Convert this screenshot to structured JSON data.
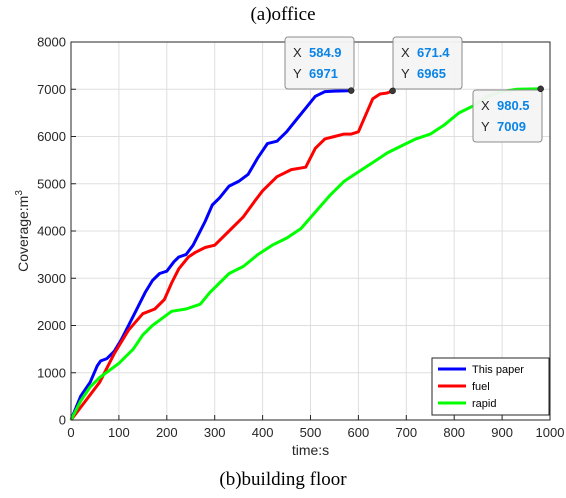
{
  "figure": {
    "top_caption": "(a)office",
    "bottom_caption": "(b)building floor"
  },
  "chart_data": {
    "type": "line",
    "xlabel": "time:s",
    "ylabel": "Coverage:m",
    "ylabel_superscript": "3",
    "xlim": [
      0,
      1000
    ],
    "ylim": [
      0,
      8000
    ],
    "xticks": [
      0,
      100,
      200,
      300,
      400,
      500,
      600,
      700,
      800,
      900,
      1000
    ],
    "yticks": [
      0,
      1000,
      2000,
      3000,
      4000,
      5000,
      6000,
      7000,
      8000
    ],
    "grid": true,
    "legend_position": "bottom-right",
    "series": [
      {
        "name": "This paper",
        "color": "#0000ff",
        "x": [
          0,
          20,
          40,
          55,
          62,
          75,
          90,
          105,
          125,
          140,
          155,
          170,
          185,
          200,
          215,
          225,
          240,
          255,
          265,
          280,
          295,
          310,
          330,
          350,
          370,
          390,
          410,
          430,
          450,
          470,
          490,
          510,
          530,
          550,
          570,
          584.9
        ],
        "y": [
          0,
          500,
          800,
          1150,
          1250,
          1300,
          1450,
          1700,
          2100,
          2400,
          2700,
          2950,
          3100,
          3150,
          3350,
          3450,
          3500,
          3700,
          3900,
          4200,
          4550,
          4700,
          4950,
          5050,
          5200,
          5550,
          5850,
          5900,
          6100,
          6350,
          6600,
          6850,
          6950,
          6960,
          6965,
          6971
        ]
      },
      {
        "name": "fuel",
        "color": "#ff0000",
        "x": [
          0,
          30,
          60,
          90,
          120,
          150,
          175,
          195,
          210,
          225,
          245,
          260,
          280,
          300,
          330,
          360,
          385,
          400,
          430,
          460,
          490,
          510,
          530,
          550,
          570,
          585,
          600,
          615,
          630,
          645,
          660,
          671.4
        ],
        "y": [
          0,
          400,
          800,
          1400,
          1900,
          2250,
          2350,
          2550,
          2900,
          3200,
          3450,
          3550,
          3650,
          3700,
          4000,
          4300,
          4650,
          4850,
          5150,
          5300,
          5350,
          5750,
          5950,
          6000,
          6050,
          6050,
          6100,
          6450,
          6800,
          6900,
          6920,
          6965
        ]
      },
      {
        "name": "rapid",
        "color": "#00ff00",
        "x": [
          0,
          20,
          40,
          60,
          80,
          100,
          130,
          150,
          170,
          190,
          210,
          240,
          270,
          290,
          310,
          330,
          360,
          390,
          420,
          450,
          480,
          510,
          540,
          570,
          600,
          630,
          660,
          690,
          720,
          750,
          780,
          810,
          840,
          870,
          900,
          930,
          960,
          980.5
        ],
        "y": [
          0,
          400,
          700,
          900,
          1050,
          1200,
          1500,
          1800,
          2000,
          2150,
          2300,
          2350,
          2450,
          2700,
          2900,
          3100,
          3250,
          3500,
          3700,
          3850,
          4050,
          4400,
          4750,
          5050,
          5250,
          5450,
          5650,
          5800,
          5950,
          6050,
          6250,
          6500,
          6650,
          6850,
          6950,
          7000,
          7005,
          7009
        ]
      }
    ],
    "datatips": [
      {
        "x_label": "X",
        "y_label": "Y",
        "x": "584.9",
        "y": "6971"
      },
      {
        "x_label": "X",
        "y_label": "Y",
        "x": "671.4",
        "y": "6965"
      },
      {
        "x_label": "X",
        "y_label": "Y",
        "x": "980.5",
        "y": "7009"
      }
    ]
  }
}
